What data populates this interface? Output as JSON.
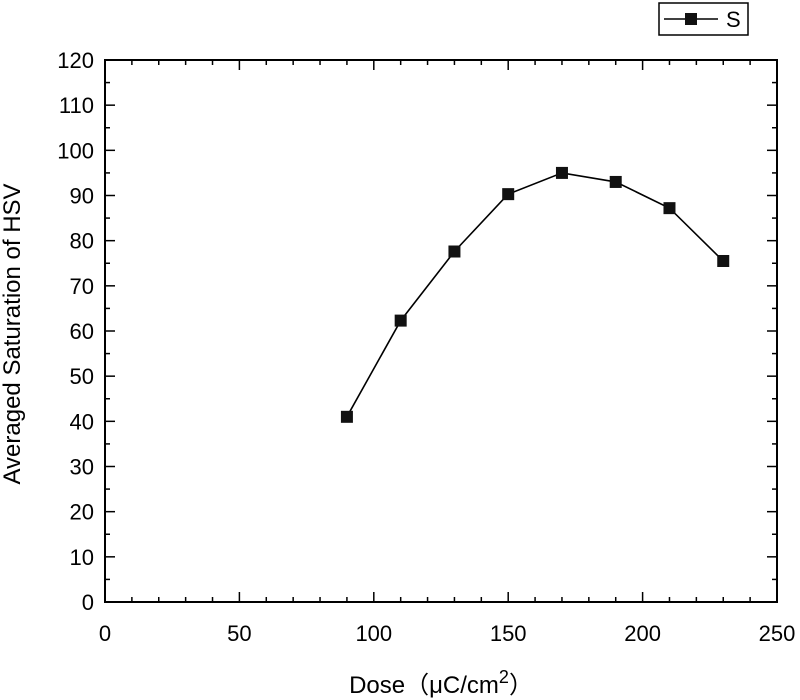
{
  "chart_data": {
    "type": "line",
    "title": "",
    "xlabel": "Dose（μC/cm",
    "xlabel_sup": "2",
    "xlabel_close": "）",
    "ylabel": "Averaged Saturation of HSV",
    "xlim": [
      0,
      250
    ],
    "ylim": [
      0,
      120
    ],
    "x_ticks": [
      0,
      50,
      100,
      150,
      200,
      250
    ],
    "y_ticks": [
      0,
      10,
      20,
      30,
      40,
      50,
      60,
      70,
      80,
      90,
      100,
      110,
      120
    ],
    "x_minor_step": 10,
    "y_minor_step": 5,
    "grid": false,
    "legend_position": "top-right",
    "series": [
      {
        "name": "S",
        "marker": "square",
        "color": "#111111",
        "x": [
          90,
          110,
          130,
          150,
          170,
          190,
          210,
          230
        ],
        "y": [
          41,
          62.3,
          77.6,
          90.3,
          95,
          93,
          87.2,
          75.5
        ]
      }
    ]
  }
}
